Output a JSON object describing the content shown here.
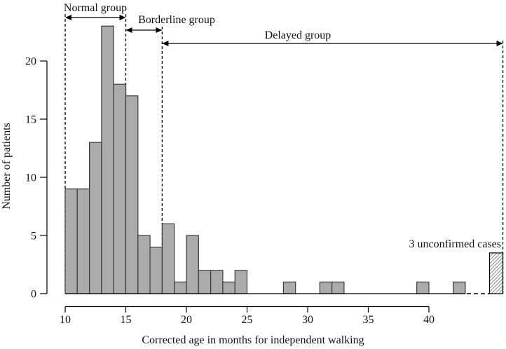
{
  "chart_data": {
    "type": "bar",
    "subtype": "histogram",
    "title": "",
    "xlabel": "Corrected age in months for independent walking",
    "ylabel": "Number of patients",
    "x_ticks": [
      10,
      15,
      20,
      25,
      30,
      35,
      40
    ],
    "y_ticks": [
      0,
      5,
      10,
      15,
      20
    ],
    "xlim": [
      10,
      46.5
    ],
    "ylim": [
      0,
      24
    ],
    "grid": false,
    "bin_width_months": 1,
    "bins": [
      {
        "x": 10,
        "n": 9
      },
      {
        "x": 11,
        "n": 9
      },
      {
        "x": 12,
        "n": 13
      },
      {
        "x": 13,
        "n": 23
      },
      {
        "x": 14,
        "n": 18
      },
      {
        "x": 15,
        "n": 17
      },
      {
        "x": 16,
        "n": 5
      },
      {
        "x": 17,
        "n": 4
      },
      {
        "x": 18,
        "n": 6
      },
      {
        "x": 19,
        "n": 1
      },
      {
        "x": 20,
        "n": 5
      },
      {
        "x": 21,
        "n": 2
      },
      {
        "x": 22,
        "n": 2
      },
      {
        "x": 23,
        "n": 1
      },
      {
        "x": 24,
        "n": 2
      },
      {
        "x": 28,
        "n": 1
      },
      {
        "x": 31,
        "n": 1
      },
      {
        "x": 32,
        "n": 1
      },
      {
        "x": 39,
        "n": 1
      },
      {
        "x": 42,
        "n": 1
      }
    ],
    "groups": [
      {
        "label": "Normal group",
        "from_month": 10,
        "to_month": 15
      },
      {
        "label": "Borderline group",
        "from_month": 15,
        "to_month": 18
      },
      {
        "label": "Delayed group",
        "from_month": 18,
        "to_month": 46.1
      }
    ],
    "unconfirmed": {
      "label": "3 unconfirmed cases",
      "count": 3,
      "from_month": 45,
      "to_month": 46.1,
      "display_height": 3.5,
      "hatched": true
    },
    "colors": {
      "bar_fill": "#ababab",
      "bar_border": "#3b3b3b",
      "axis": "#000000",
      "hatch_line": "#8f8f8f",
      "background": "#ffffff"
    }
  }
}
